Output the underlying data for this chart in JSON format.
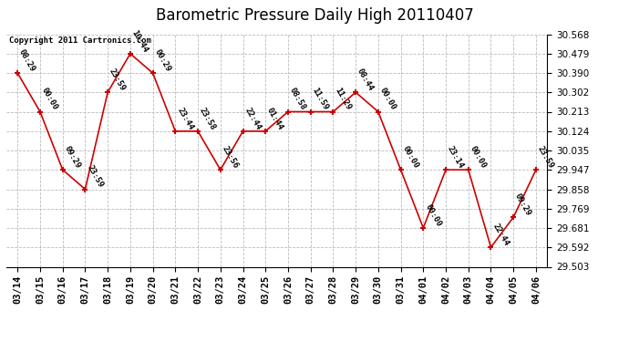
{
  "title": "Barometric Pressure Daily High 20110407",
  "copyright": "Copyright 2011 Cartronics.com",
  "x_labels": [
    "03/14",
    "03/15",
    "03/16",
    "03/17",
    "03/18",
    "03/19",
    "03/20",
    "03/21",
    "03/22",
    "03/23",
    "03/24",
    "03/25",
    "03/26",
    "03/27",
    "03/28",
    "03/29",
    "03/30",
    "03/31",
    "04/01",
    "04/02",
    "04/03",
    "04/04",
    "04/05",
    "04/06"
  ],
  "y_values": [
    30.39,
    30.213,
    29.947,
    29.858,
    30.302,
    30.479,
    30.39,
    30.124,
    30.124,
    29.947,
    30.124,
    30.124,
    30.213,
    30.213,
    30.213,
    30.302,
    30.213,
    29.947,
    29.681,
    29.947,
    29.947,
    29.592,
    29.73,
    29.947
  ],
  "point_labels": [
    "08:29",
    "00:00",
    "09:29",
    "23:59",
    "23:59",
    "10:44",
    "00:29",
    "23:44",
    "23:58",
    "23:56",
    "22:44",
    "01:44",
    "08:58",
    "11:59",
    "11:29",
    "08:44",
    "00:00",
    "00:00",
    "00:00",
    "23:14",
    "00:00",
    "22:44",
    "09:29",
    "23:59"
  ],
  "y_ticks": [
    29.503,
    29.592,
    29.681,
    29.769,
    29.858,
    29.947,
    30.035,
    30.124,
    30.213,
    30.302,
    30.39,
    30.479,
    30.568
  ],
  "y_min": 29.503,
  "y_max": 30.568,
  "line_color": "#cc0000",
  "marker_color": "#cc0000",
  "background_color": "#ffffff",
  "grid_color": "#bbbbbb",
  "title_fontsize": 12,
  "tick_fontsize": 7.5,
  "label_fontsize": 6.5
}
